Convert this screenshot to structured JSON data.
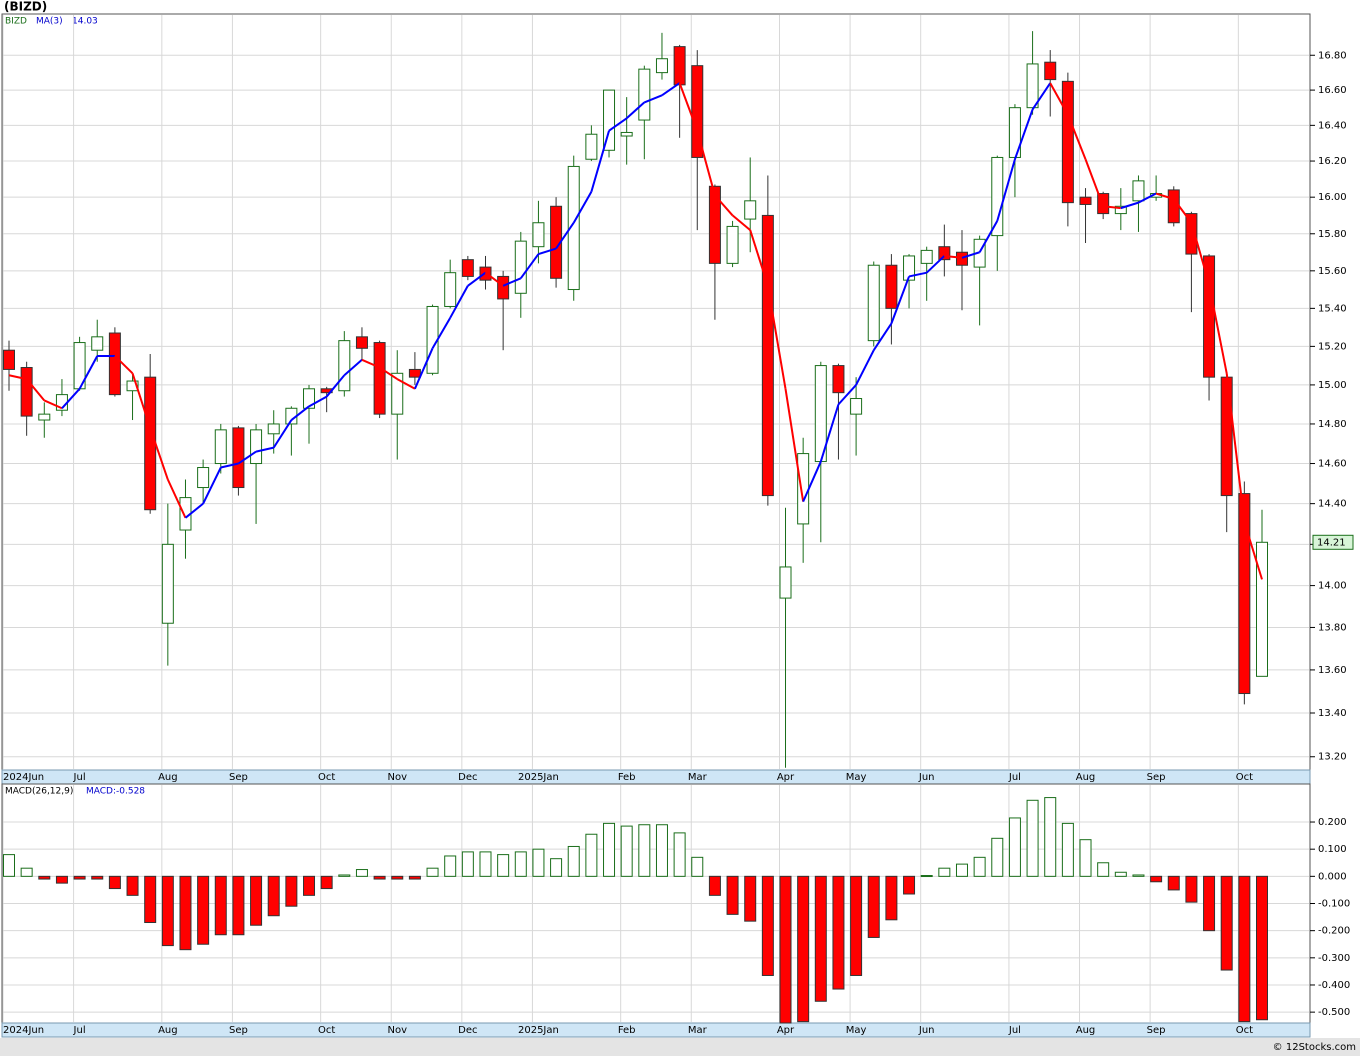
{
  "footer": "© 12Stocks.com",
  "chart_data": [
    {
      "type": "candlestick",
      "title": "(BIZD)",
      "symbol": "BIZD",
      "ma_name": "MA(3)",
      "log_scale": true,
      "grid": true,
      "up_color": "#1a6e1a",
      "down_color": "#ff0000",
      "ma_up_color": "#0000ff",
      "ma_down_color": "#ff0000",
      "categories": [
        "2024Jun",
        null,
        null,
        null,
        "Jul",
        null,
        null,
        null,
        null,
        "Aug",
        null,
        null,
        null,
        "Sep",
        null,
        null,
        null,
        null,
        "Oct",
        null,
        null,
        null,
        "Nov",
        null,
        null,
        null,
        "Dec",
        null,
        null,
        null,
        "2025Jan",
        null,
        null,
        null,
        null,
        "Feb",
        null,
        null,
        null,
        "Mar",
        null,
        null,
        null,
        null,
        "Apr",
        null,
        null,
        null,
        "May",
        null,
        null,
        null,
        "Jun",
        null,
        null,
        null,
        null,
        "Jul",
        null,
        null,
        null,
        "Aug",
        null,
        null,
        null,
        "Sep",
        null,
        null,
        null,
        null,
        "Oct",
        null
      ],
      "open": [
        15.18,
        15.09,
        14.82,
        14.87,
        14.98,
        15.18,
        15.27,
        14.97,
        15.04,
        13.82,
        14.27,
        14.48,
        14.6,
        14.78,
        14.6,
        14.75,
        14.8,
        14.88,
        14.98,
        14.97,
        15.25,
        15.22,
        14.85,
        15.08,
        15.06,
        15.41,
        15.66,
        15.62,
        15.57,
        15.48,
        15.73,
        15.95,
        15.5,
        16.21,
        16.26,
        16.34,
        16.43,
        16.7,
        16.85,
        16.74,
        16.06,
        15.64,
        15.88,
        15.9,
        13.94,
        14.3,
        14.61,
        15.1,
        14.85,
        15.23,
        15.63,
        15.55,
        15.64,
        15.73,
        15.7,
        15.62,
        15.79,
        16.22,
        16.5,
        16.76,
        16.65,
        16.0,
        16.02,
        15.91,
        15.98,
        16.0,
        16.04,
        15.91,
        15.68,
        15.04,
        14.45,
        13.57
      ],
      "high": [
        15.23,
        15.12,
        14.91,
        15.03,
        15.25,
        15.34,
        15.3,
        15.05,
        15.16,
        14.4,
        14.52,
        14.62,
        14.8,
        14.79,
        14.8,
        14.87,
        14.89,
        15.0,
        14.99,
        15.28,
        15.3,
        15.23,
        15.18,
        15.17,
        15.42,
        15.66,
        15.68,
        15.68,
        15.6,
        15.81,
        15.98,
        16.0,
        16.23,
        16.4,
        16.6,
        16.56,
        16.74,
        16.93,
        16.86,
        16.83,
        16.07,
        15.87,
        16.22,
        16.12,
        14.38,
        14.73,
        15.12,
        15.11,
        15.04,
        15.65,
        15.69,
        15.69,
        15.73,
        15.85,
        15.82,
        15.79,
        16.23,
        16.52,
        16.94,
        16.83,
        16.7,
        16.05,
        16.03,
        16.05,
        16.12,
        16.12,
        16.06,
        15.92,
        15.69,
        15.06,
        14.51,
        14.37
      ],
      "low": [
        14.97,
        14.74,
        14.73,
        14.84,
        14.97,
        15.12,
        14.94,
        14.82,
        14.35,
        13.62,
        14.13,
        14.4,
        14.55,
        14.44,
        14.3,
        14.65,
        14.64,
        14.7,
        14.86,
        14.94,
        15.13,
        14.83,
        14.62,
        15.0,
        15.05,
        15.4,
        15.55,
        15.5,
        15.18,
        15.35,
        15.64,
        15.51,
        15.44,
        16.2,
        16.22,
        16.18,
        16.21,
        16.66,
        16.33,
        15.82,
        15.34,
        15.62,
        15.7,
        14.39,
        13.15,
        14.11,
        14.21,
        14.62,
        14.64,
        15.2,
        15.21,
        15.4,
        15.44,
        15.57,
        15.39,
        15.31,
        15.6,
        16.0,
        16.46,
        16.45,
        15.84,
        15.75,
        15.88,
        15.82,
        15.81,
        15.98,
        15.84,
        15.38,
        14.92,
        14.26,
        13.44,
        13.57
      ],
      "close": [
        15.08,
        14.84,
        14.85,
        14.95,
        15.22,
        15.25,
        14.95,
        15.02,
        14.37,
        14.2,
        14.43,
        14.58,
        14.77,
        14.48,
        14.77,
        14.8,
        14.88,
        14.98,
        14.96,
        15.23,
        15.19,
        14.85,
        15.06,
        15.04,
        15.41,
        15.59,
        15.57,
        15.55,
        15.45,
        15.76,
        15.86,
        15.56,
        16.17,
        16.35,
        16.6,
        16.36,
        16.72,
        16.78,
        16.63,
        16.22,
        15.64,
        15.84,
        15.98,
        14.44,
        14.09,
        14.65,
        15.1,
        14.96,
        14.93,
        15.63,
        15.4,
        15.68,
        15.71,
        15.66,
        15.63,
        15.77,
        16.22,
        16.5,
        16.75,
        16.66,
        15.97,
        15.96,
        15.91,
        15.95,
        16.09,
        16.02,
        15.86,
        15.69,
        15.04,
        14.44,
        13.49,
        14.21
      ],
      "ma": [
        15.05,
        15.03,
        14.92,
        14.88,
        14.98,
        15.15,
        15.15,
        15.06,
        14.78,
        14.52,
        14.33,
        14.4,
        14.58,
        14.6,
        14.66,
        14.68,
        14.82,
        14.89,
        14.94,
        15.05,
        15.13,
        15.09,
        15.03,
        14.98,
        15.19,
        15.35,
        15.52,
        15.59,
        15.52,
        15.56,
        15.69,
        15.72,
        15.86,
        16.03,
        16.37,
        16.44,
        16.53,
        16.57,
        16.64,
        16.37,
        16.01,
        15.9,
        15.82,
        15.52,
        14.98,
        14.41,
        14.61,
        14.9,
        15.0,
        15.18,
        15.32,
        15.57,
        15.59,
        15.68,
        15.67,
        15.7,
        15.87,
        16.21,
        16.49,
        16.64,
        16.46,
        16.21,
        15.95,
        15.94,
        15.97,
        16.02,
        15.99,
        15.86,
        15.53,
        15.06,
        14.31,
        14.03
      ],
      "ylim": [
        13.14,
        17.04
      ],
      "yticks": [
        {
          "value": 16.8,
          "label": "16.80"
        },
        {
          "value": 16.6,
          "label": "16.60"
        },
        {
          "value": 16.4,
          "label": "16.40"
        },
        {
          "value": 16.2,
          "label": "16.20"
        },
        {
          "value": 16.0,
          "label": "16.00"
        },
        {
          "value": 15.8,
          "label": "15.80"
        },
        {
          "value": 15.6,
          "label": "15.60"
        },
        {
          "value": 15.4,
          "label": "15.40"
        },
        {
          "value": 15.2,
          "label": "15.20"
        },
        {
          "value": 15.0,
          "label": "15.00"
        },
        {
          "value": 14.8,
          "label": "14.80"
        },
        {
          "value": 14.6,
          "label": "14.60"
        },
        {
          "value": 14.4,
          "label": "14.40"
        },
        {
          "value": 14.2,
          "label": "14.20"
        },
        {
          "value": 14.0,
          "label": "14.00"
        },
        {
          "value": 13.8,
          "label": "13.80"
        },
        {
          "value": 13.6,
          "label": "13.60"
        },
        {
          "value": 13.4,
          "label": "13.40"
        },
        {
          "value": 13.2,
          "label": "13.20"
        }
      ]
    },
    {
      "type": "bar",
      "title": "MACD(26,12,9)",
      "value_text": "MACD:-0.528",
      "grid": true,
      "pos_color": "#1a6e1a",
      "neg_color": "#ff0000",
      "values": [
        0.08,
        0.03,
        -0.01,
        -0.025,
        -0.01,
        -0.01,
        -0.045,
        -0.07,
        -0.17,
        -0.255,
        -0.27,
        -0.25,
        -0.215,
        -0.215,
        -0.18,
        -0.145,
        -0.11,
        -0.07,
        -0.045,
        0.005,
        0.025,
        -0.01,
        -0.01,
        -0.01,
        0.03,
        0.075,
        0.09,
        0.09,
        0.08,
        0.09,
        0.1,
        0.065,
        0.11,
        0.155,
        0.195,
        0.185,
        0.19,
        0.19,
        0.16,
        0.07,
        -0.07,
        -0.14,
        -0.165,
        -0.365,
        -0.54,
        -0.535,
        -0.46,
        -0.415,
        -0.365,
        -0.225,
        -0.16,
        -0.065,
        0.003,
        0.03,
        0.045,
        0.07,
        0.14,
        0.215,
        0.28,
        0.29,
        0.195,
        0.135,
        0.05,
        0.015,
        0.005,
        -0.02,
        -0.05,
        -0.095,
        -0.2,
        -0.345,
        -0.535,
        -0.528
      ],
      "ylim": [
        -0.54,
        0.34
      ],
      "yticks": [
        {
          "value": 0.2,
          "label": "0.200"
        },
        {
          "value": 0.1,
          "label": "0.100"
        },
        {
          "value": 0,
          "label": "0.000"
        },
        {
          "value": -0.1,
          "label": "-0.100"
        },
        {
          "value": -0.2,
          "label": "-0.200"
        },
        {
          "value": -0.3,
          "label": "-0.300"
        },
        {
          "value": -0.4,
          "label": "-0.400"
        },
        {
          "value": -0.5,
          "label": "-0.500"
        }
      ]
    }
  ]
}
